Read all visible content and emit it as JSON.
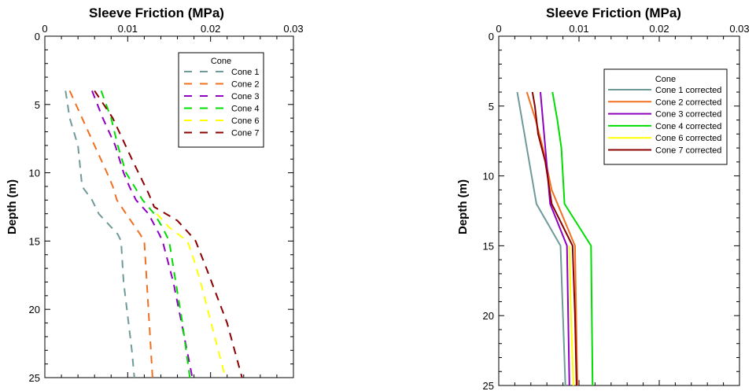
{
  "chart_data": [
    {
      "type": "line",
      "title": "Sleeve Friction (MPa)",
      "xlabel": "Sleeve Friction (MPa)",
      "ylabel": "Depth (m)",
      "xlim": [
        0,
        0.03
      ],
      "ylim": [
        0,
        25
      ],
      "y_inverted": true,
      "x_axis_position": "top",
      "x_ticks": [
        "0",
        "0.01",
        "0.02",
        "0.03"
      ],
      "y_ticks": [
        "0",
        "5",
        "10",
        "15",
        "20",
        "25"
      ],
      "legend_title": "Cone",
      "legend_position": "top-right",
      "line_style": "dashed",
      "series": [
        {
          "name": "Cone 1",
          "color": "#6f9a9a",
          "x": [
            0.0025,
            0.003,
            0.004,
            0.0045,
            0.0057,
            0.0065,
            0.0088,
            0.0092,
            0.0095,
            0.0105,
            0.0108
          ],
          "y": [
            4,
            6,
            8,
            11,
            12,
            13,
            14.5,
            15,
            18,
            23,
            25
          ]
        },
        {
          "name": "Cone 2",
          "color": "#f07020",
          "x": [
            0.003,
            0.0045,
            0.006,
            0.0075,
            0.0082,
            0.0087,
            0.0098,
            0.0115,
            0.012,
            0.0125,
            0.013
          ],
          "y": [
            4,
            6,
            8,
            10,
            11,
            12,
            13,
            14.5,
            15,
            20,
            25
          ]
        },
        {
          "name": "Cone 3",
          "color": "#8f00c0",
          "x": [
            0.0057,
            0.007,
            0.0085,
            0.0095,
            0.0102,
            0.011,
            0.0125,
            0.0138,
            0.0142,
            0.0155,
            0.0165,
            0.0178
          ],
          "y": [
            4,
            6,
            8,
            10,
            11,
            12,
            13,
            14.5,
            15,
            18,
            21,
            25
          ]
        },
        {
          "name": "Cone 4",
          "color": "#00dd00",
          "x": [
            0.0068,
            0.008,
            0.0088,
            0.0098,
            0.0108,
            0.0118,
            0.0132,
            0.0142,
            0.015,
            0.0158,
            0.0166,
            0.0175
          ],
          "y": [
            4,
            6,
            8,
            10,
            11,
            12,
            13,
            14,
            15,
            18,
            21,
            25
          ]
        },
        {
          "name": "Cone 6",
          "color": "#ffff00",
          "x": [
            0.0135,
            0.015,
            0.0172,
            0.0178,
            0.0188,
            0.0205,
            0.0218
          ],
          "y": [
            13,
            14,
            15,
            16,
            18,
            22,
            25
          ]
        },
        {
          "name": "Cone 7",
          "color": "#8b0000",
          "x": [
            0.006,
            0.0082,
            0.0105,
            0.0125,
            0.0132,
            0.016,
            0.0175,
            0.0182,
            0.0195,
            0.022,
            0.0238
          ],
          "y": [
            4,
            6,
            9,
            11.5,
            12.5,
            13.5,
            14.5,
            15,
            17,
            21,
            25
          ]
        }
      ]
    },
    {
      "type": "line",
      "title": "Sleeve Friction (MPa)",
      "xlabel": "Sleeve Friction (MPa)",
      "ylabel": "Depth (m)",
      "xlim": [
        0,
        0.03
      ],
      "ylim": [
        0,
        25
      ],
      "y_inverted": true,
      "x_axis_position": "top",
      "x_ticks": [
        "0",
        "0.01",
        "0.02",
        "0.03"
      ],
      "y_ticks": [
        "0",
        "5",
        "10",
        "15",
        "20",
        "25"
      ],
      "legend_title": "Cone",
      "legend_position": "top-right",
      "line_style": "solid",
      "series": [
        {
          "name": "Cone 1 corrected",
          "color": "#6f9a9a",
          "x": [
            0.0023,
            0.0035,
            0.0047,
            0.0077,
            0.0083
          ],
          "y": [
            4,
            8,
            12,
            15,
            25
          ]
        },
        {
          "name": "Cone 2 corrected",
          "color": "#f07020",
          "x": [
            0.0035,
            0.0046,
            0.0055,
            0.0066,
            0.0095,
            0.0098
          ],
          "y": [
            4,
            6,
            8,
            11,
            15,
            25
          ]
        },
        {
          "name": "Cone 3 corrected",
          "color": "#8f00c0",
          "x": [
            0.0052,
            0.0055,
            0.0058,
            0.0064,
            0.0085,
            0.0088
          ],
          "y": [
            4,
            6,
            8,
            12,
            15,
            25
          ]
        },
        {
          "name": "Cone 4 corrected",
          "color": "#00dd00",
          "x": [
            0.0067,
            0.0073,
            0.0078,
            0.0082,
            0.0115,
            0.0117
          ],
          "y": [
            4,
            6,
            8,
            12,
            15,
            25
          ]
        },
        {
          "name": "Cone 6 corrected",
          "color": "#ffff00",
          "x": [
            0.0088,
            0.009,
            0.0093
          ],
          "y": [
            15,
            20,
            25
          ]
        },
        {
          "name": "Cone 7 corrected",
          "color": "#8b0000",
          "x": [
            0.0042,
            0.0045,
            0.0049,
            0.0058,
            0.0066,
            0.0092,
            0.0095,
            0.0097
          ],
          "y": [
            4,
            5,
            7,
            9,
            12,
            15,
            20,
            25
          ]
        }
      ]
    }
  ]
}
